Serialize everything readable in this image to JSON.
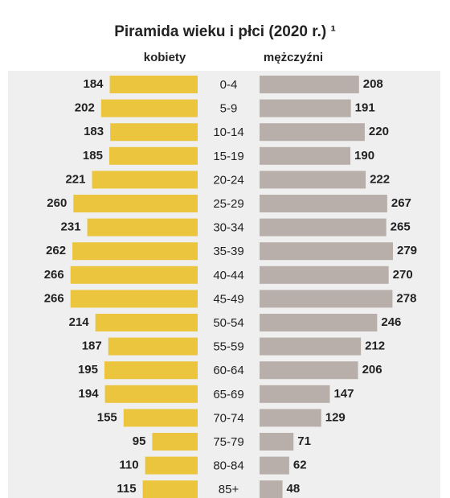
{
  "chart_data": {
    "type": "pyramid",
    "title": "Piramida wieku i płci (2020 r.) ¹",
    "categories": [
      "0-4",
      "5-9",
      "10-14",
      "15-19",
      "20-24",
      "25-29",
      "30-34",
      "35-39",
      "40-44",
      "45-49",
      "50-54",
      "55-59",
      "60-64",
      "65-69",
      "70-74",
      "75-79",
      "80-84",
      "85+"
    ],
    "series": [
      {
        "name": "kobiety",
        "color": "#ecc53f",
        "values": [
          184,
          202,
          183,
          185,
          221,
          260,
          231,
          262,
          266,
          266,
          214,
          187,
          195,
          194,
          155,
          95,
          110,
          115
        ]
      },
      {
        "name": "mężczyźni",
        "color": "#b9afaa",
        "values": [
          208,
          191,
          220,
          190,
          222,
          267,
          265,
          279,
          270,
          278,
          246,
          212,
          206,
          147,
          129,
          71,
          62,
          48
        ]
      }
    ]
  }
}
